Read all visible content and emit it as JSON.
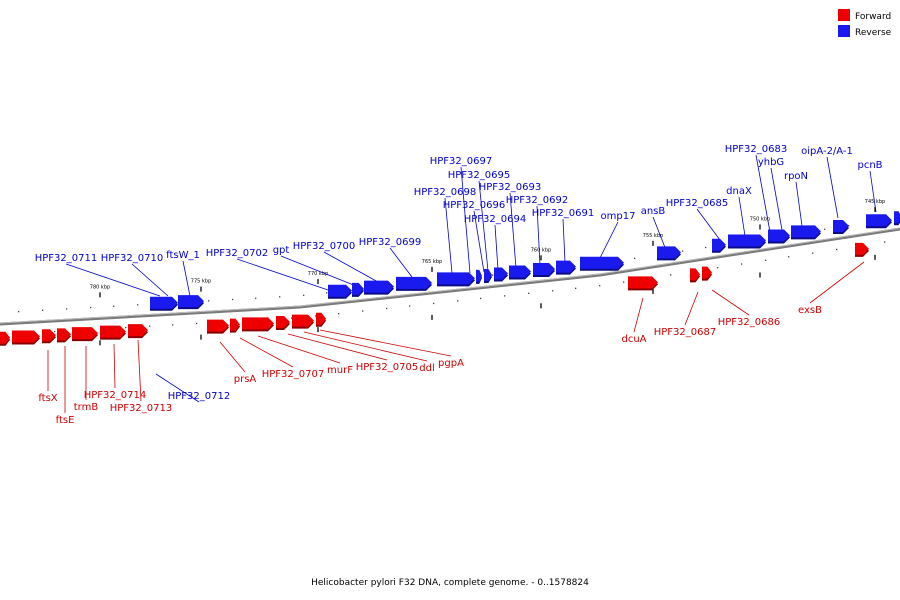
{
  "colors": {
    "forward": "#ee0000",
    "reverse": "#1a1aee",
    "forward_label": "#cc0000",
    "reverse_label": "#0000cc"
  },
  "legend": {
    "forward": "Forward",
    "reverse": "Reverse"
  },
  "caption": "Helicobacter pylori F32 DNA, complete genome. - 0..1578824",
  "ticks": [
    "780 kbp",
    "775 kbp",
    "770 kbp",
    "765 kbp",
    "760 kbp",
    "755 kbp",
    "750 kbp",
    "745 kbp"
  ],
  "reverse_labels": [
    "HPF32_0711",
    "HPF32_0710",
    "ftsW_1",
    "HPF32_0702",
    "gpt",
    "HPF32_0700",
    "HPF32_0699",
    "HPF32_0698",
    "HPF32_0697",
    "HPF32_0696",
    "HPF32_0695",
    "HPF32_0694",
    "HPF32_0693",
    "HPF32_0692",
    "HPF32_0691",
    "omp17",
    "ansB",
    "HPF32_0685",
    "dnaX",
    "HPF32_0683",
    "yhbG",
    "rpoN",
    "oipA-2/A-1",
    "pcnB",
    "HPF32_0712"
  ],
  "forward_labels": [
    "ftsX",
    "ftsE",
    "trmB",
    "HPF32_0714",
    "HPF32_0713",
    "prsA",
    "HPF32_0707",
    "murF",
    "HPF32_0705",
    "ddl",
    "pgpA",
    "dcuA",
    "HPF32_0687",
    "HPF32_0686",
    "exsB"
  ]
}
